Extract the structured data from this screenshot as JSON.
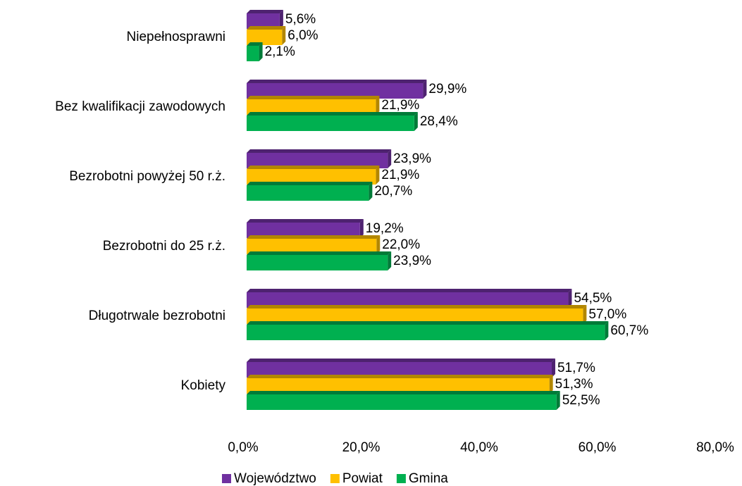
{
  "chart_data": {
    "type": "bar",
    "orientation": "horizontal",
    "categories": [
      "Niepełnosprawni",
      "Bez kwalifikacji zawodowych",
      "Bezrobotni powyżej 50 r.ż.",
      "Bezrobotni do 25 r.ż.",
      "Długotrwale bezrobotni",
      "Kobiety"
    ],
    "series": [
      {
        "name": "Województwo",
        "color": "#7030a0",
        "values": [
          5.6,
          29.9,
          23.9,
          19.2,
          54.5,
          51.7
        ],
        "value_labels": [
          "5,6%",
          "29,9%",
          "23,9%",
          "19,2%",
          "54,5%",
          "51,7%"
        ]
      },
      {
        "name": "Powiat",
        "color": "#ffc000",
        "values": [
          6.0,
          21.9,
          21.9,
          22.0,
          57.0,
          51.3
        ],
        "value_labels": [
          "6,0%",
          "21,9%",
          "21,9%",
          "22,0%",
          "57,0%",
          "51,3%"
        ]
      },
      {
        "name": "Gmina",
        "color": "#00b050",
        "values": [
          2.1,
          28.4,
          20.7,
          23.9,
          60.7,
          52.5
        ],
        "value_labels": [
          "2,1%",
          "28,4%",
          "20,7%",
          "23,9%",
          "60,7%",
          "52,5%"
        ]
      }
    ],
    "xlim": [
      0,
      80
    ],
    "xticks": [
      {
        "value": 0,
        "label": "0,0%"
      },
      {
        "value": 20,
        "label": "20,0%"
      },
      {
        "value": 40,
        "label": "40,0%"
      },
      {
        "value": 60,
        "label": "60,0%"
      },
      {
        "value": 80,
        "label": "80,0%"
      }
    ],
    "grid": false,
    "legend": "bottom"
  }
}
